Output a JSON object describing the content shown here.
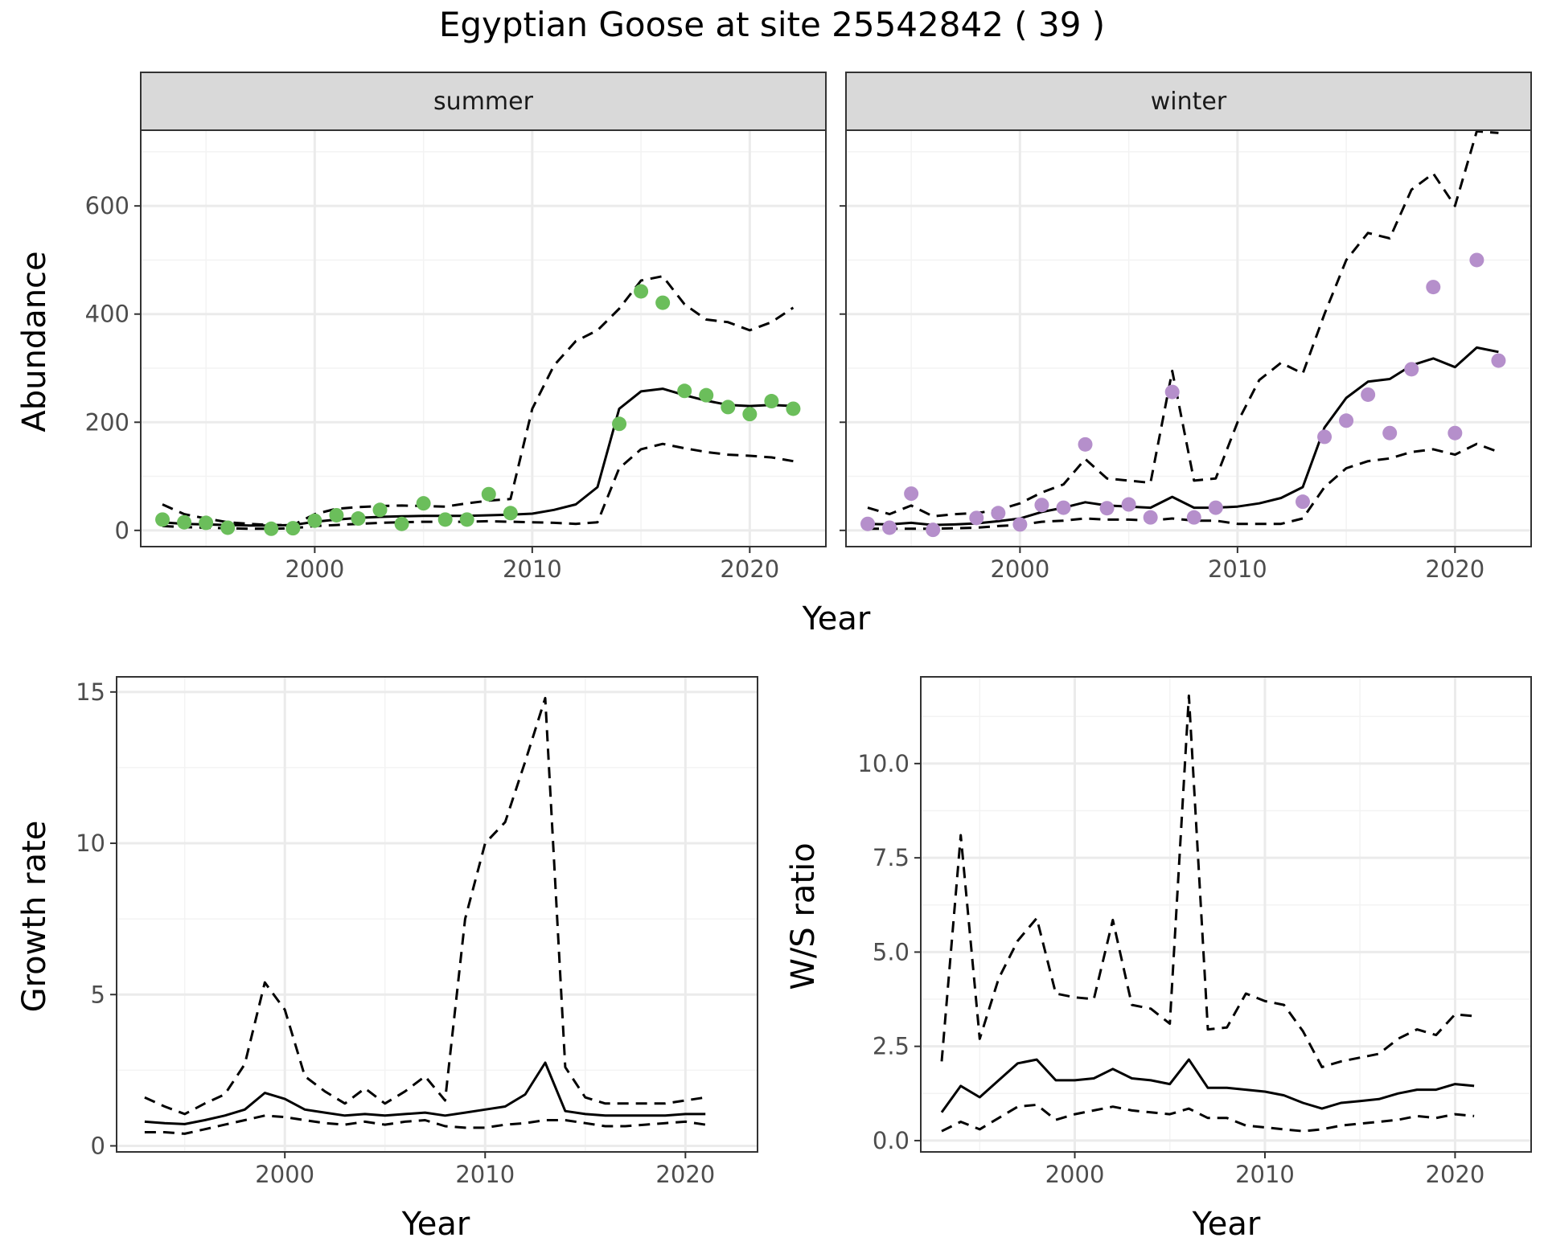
{
  "title": "Egyptian Goose at site 25542842 ( 39 )",
  "colors": {
    "summer_points": "#6BBE5B",
    "winter_points": "#B58FCB",
    "line": "#000000",
    "strip_bg": "#D9D9D9",
    "grid": "#EBEBEB"
  },
  "chart_data": [
    {
      "type": "line",
      "facet": "summer",
      "strip_label": "summer",
      "xlabel": "Year",
      "ylabel": "Abundance",
      "xlim": [
        1992,
        2023.5
      ],
      "ylim": [
        -30,
        740
      ],
      "x_ticks": [
        2000,
        2010,
        2020
      ],
      "y_ticks": [
        0,
        200,
        400,
        600
      ],
      "grid": true,
      "x": [
        1993,
        1994,
        1995,
        1996,
        1997,
        1998,
        1999,
        2000,
        2001,
        2002,
        2003,
        2004,
        2005,
        2006,
        2007,
        2008,
        2009,
        2010,
        2011,
        2012,
        2013,
        2014,
        2015,
        2016,
        2017,
        2018,
        2019,
        2020,
        2021,
        2022
      ],
      "series": [
        {
          "role": "fitted",
          "style": "solid",
          "values": [
            15,
            12,
            11,
            10,
            9,
            9,
            10,
            16,
            20,
            23,
            25,
            26,
            27,
            27,
            27,
            28,
            29,
            31,
            38,
            48,
            80,
            225,
            257,
            262,
            250,
            240,
            232,
            230,
            232,
            230
          ]
        },
        {
          "role": "upper",
          "style": "dashed",
          "values": [
            48,
            30,
            22,
            15,
            12,
            10,
            10,
            30,
            40,
            43,
            45,
            46,
            45,
            44,
            50,
            55,
            58,
            225,
            305,
            350,
            370,
            410,
            462,
            470,
            418,
            390,
            385,
            370,
            385,
            412
          ]
        },
        {
          "role": "lower",
          "style": "dashed",
          "values": [
            8,
            6,
            5,
            4,
            3,
            3,
            4,
            8,
            10,
            12,
            14,
            15,
            16,
            16,
            16,
            17,
            16,
            15,
            14,
            12,
            15,
            115,
            150,
            160,
            152,
            145,
            140,
            138,
            135,
            128
          ]
        }
      ],
      "points": {
        "x": [
          1993,
          1994,
          1995,
          1996,
          1998,
          1999,
          2000,
          2001,
          2002,
          2003,
          2004,
          2005,
          2006,
          2007,
          2008,
          2009,
          2014,
          2015,
          2016,
          2017,
          2018,
          2019,
          2020,
          2021,
          2022
        ],
        "y": [
          20,
          15,
          14,
          5,
          3,
          4,
          18,
          28,
          22,
          38,
          12,
          50,
          20,
          20,
          67,
          32,
          197,
          442,
          421,
          258,
          250,
          228,
          215,
          239,
          225
        ]
      }
    },
    {
      "type": "line",
      "facet": "winter",
      "strip_label": "winter",
      "xlabel": "Year",
      "ylabel": "Abundance",
      "xlim": [
        1992,
        2023.5
      ],
      "ylim": [
        -30,
        740
      ],
      "x_ticks": [
        2000,
        2010,
        2020
      ],
      "y_ticks": [
        0,
        200,
        400,
        600
      ],
      "grid": true,
      "x": [
        1993,
        1994,
        1995,
        1996,
        1997,
        1998,
        1999,
        2000,
        2001,
        2002,
        2003,
        2004,
        2005,
        2006,
        2007,
        2008,
        2009,
        2010,
        2011,
        2012,
        2013,
        2014,
        2015,
        2016,
        2017,
        2018,
        2019,
        2020,
        2021,
        2022
      ],
      "series": [
        {
          "role": "fitted",
          "style": "solid",
          "values": [
            12,
            11,
            14,
            10,
            11,
            13,
            17,
            22,
            34,
            42,
            52,
            46,
            44,
            42,
            62,
            42,
            42,
            44,
            50,
            60,
            80,
            190,
            245,
            275,
            280,
            305,
            318,
            302,
            338,
            330
          ]
        },
        {
          "role": "upper",
          "style": "dashed",
          "values": [
            42,
            30,
            46,
            26,
            30,
            32,
            38,
            50,
            70,
            85,
            132,
            96,
            92,
            88,
            295,
            92,
            96,
            200,
            278,
            310,
            290,
            400,
            500,
            550,
            540,
            630,
            660,
            600,
            738,
            735
          ]
        },
        {
          "role": "lower",
          "style": "dashed",
          "values": [
            3,
            3,
            3,
            3,
            4,
            5,
            8,
            10,
            16,
            18,
            22,
            20,
            20,
            18,
            22,
            18,
            18,
            12,
            12,
            12,
            22,
            80,
            115,
            128,
            133,
            145,
            150,
            140,
            160,
            145
          ]
        }
      ],
      "points": {
        "x": [
          1993,
          1994,
          1995,
          1996,
          1998,
          1999,
          2000,
          2001,
          2002,
          2003,
          2004,
          2005,
          2006,
          2007,
          2008,
          2009,
          2013,
          2014,
          2015,
          2016,
          2017,
          2018,
          2019,
          2020,
          2021,
          2022
        ],
        "y": [
          12,
          5,
          68,
          1,
          23,
          32,
          11,
          47,
          42,
          159,
          41,
          48,
          24,
          256,
          24,
          42,
          53,
          173,
          203,
          251,
          180,
          298,
          450,
          180,
          500,
          314
        ]
      }
    },
    {
      "type": "line",
      "facet": "growth",
      "xlabel": "Year",
      "ylabel": "Growth rate",
      "xlim": [
        1991.6,
        2023.6
      ],
      "ylim": [
        -0.2,
        15.5
      ],
      "x_ticks": [
        2000,
        2010,
        2020
      ],
      "y_ticks": [
        0,
        5,
        10,
        15
      ],
      "grid": true,
      "x": [
        1993,
        1994,
        1995,
        1996,
        1997,
        1998,
        1999,
        2000,
        2001,
        2002,
        2003,
        2004,
        2005,
        2006,
        2007,
        2008,
        2009,
        2010,
        2011,
        2012,
        2013,
        2014,
        2015,
        2016,
        2017,
        2018,
        2019,
        2020,
        2021
      ],
      "series": [
        {
          "role": "fitted",
          "style": "solid",
          "values": [
            0.8,
            0.75,
            0.72,
            0.85,
            1.0,
            1.2,
            1.75,
            1.55,
            1.2,
            1.1,
            1.0,
            1.05,
            1.0,
            1.05,
            1.1,
            1.0,
            1.1,
            1.2,
            1.3,
            1.7,
            2.75,
            1.15,
            1.05,
            1.0,
            1.0,
            1.0,
            1.0,
            1.05,
            1.05
          ]
        },
        {
          "role": "upper",
          "style": "dashed",
          "values": [
            1.6,
            1.3,
            1.05,
            1.4,
            1.7,
            2.7,
            5.4,
            4.5,
            2.3,
            1.8,
            1.4,
            1.9,
            1.4,
            1.8,
            2.3,
            1.5,
            7.5,
            10.0,
            10.7,
            12.7,
            14.8,
            2.6,
            1.6,
            1.4,
            1.4,
            1.4,
            1.4,
            1.5,
            1.6
          ]
        },
        {
          "role": "lower",
          "style": "dashed",
          "values": [
            0.45,
            0.45,
            0.4,
            0.55,
            0.7,
            0.85,
            1.0,
            0.95,
            0.85,
            0.75,
            0.7,
            0.8,
            0.7,
            0.8,
            0.85,
            0.65,
            0.6,
            0.6,
            0.7,
            0.75,
            0.85,
            0.85,
            0.75,
            0.65,
            0.65,
            0.7,
            0.75,
            0.8,
            0.7
          ]
        }
      ]
    },
    {
      "type": "line",
      "facet": "ratio",
      "xlabel": "Year",
      "ylabel": "W/S ratio",
      "xlim": [
        1991.9,
        2024
      ],
      "ylim": [
        -0.3,
        12.3
      ],
      "x_ticks": [
        2000,
        2010,
        2020
      ],
      "y_ticks": [
        0.0,
        2.5,
        5.0,
        7.5,
        10.0
      ],
      "y_tick_labels": [
        "0.0",
        "2.5",
        "5.0",
        "7.5",
        "10.0"
      ],
      "grid": true,
      "x": [
        1993,
        1994,
        1995,
        1996,
        1997,
        1998,
        1999,
        2000,
        2001,
        2002,
        2003,
        2004,
        2005,
        2006,
        2007,
        2008,
        2009,
        2010,
        2011,
        2012,
        2013,
        2014,
        2015,
        2016,
        2017,
        2018,
        2019,
        2020,
        2021
      ],
      "series": [
        {
          "role": "fitted",
          "style": "solid",
          "values": [
            0.75,
            1.45,
            1.15,
            1.6,
            2.05,
            2.15,
            1.6,
            1.6,
            1.65,
            1.9,
            1.65,
            1.6,
            1.5,
            2.15,
            1.4,
            1.4,
            1.35,
            1.3,
            1.2,
            1.0,
            0.85,
            1.0,
            1.05,
            1.1,
            1.25,
            1.35,
            1.35,
            1.5,
            1.45
          ]
        },
        {
          "role": "upper",
          "style": "dashed",
          "values": [
            2.1,
            8.1,
            2.7,
            4.3,
            5.3,
            5.9,
            3.9,
            3.8,
            3.75,
            5.85,
            3.6,
            3.5,
            3.1,
            11.8,
            2.95,
            3.0,
            3.9,
            3.7,
            3.6,
            2.9,
            1.95,
            2.1,
            2.2,
            2.3,
            2.7,
            2.95,
            2.8,
            3.35,
            3.3
          ]
        },
        {
          "role": "lower",
          "style": "dashed",
          "values": [
            0.25,
            0.5,
            0.3,
            0.6,
            0.9,
            0.95,
            0.55,
            0.7,
            0.8,
            0.9,
            0.8,
            0.75,
            0.7,
            0.85,
            0.6,
            0.6,
            0.4,
            0.35,
            0.3,
            0.25,
            0.3,
            0.4,
            0.45,
            0.5,
            0.55,
            0.65,
            0.6,
            0.7,
            0.65
          ]
        }
      ]
    }
  ]
}
